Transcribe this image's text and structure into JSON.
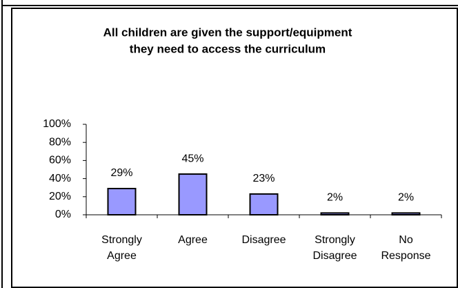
{
  "chart_data": {
    "type": "bar",
    "title": [
      "All children are given the support/equipment",
      "they need to access the curriculum"
    ],
    "categories": [
      [
        "Strongly",
        "Agree"
      ],
      [
        "Agree"
      ],
      [
        "Disagree"
      ],
      [
        "Strongly",
        "Disagree"
      ],
      [
        "No",
        "Response"
      ]
    ],
    "values": [
      29,
      45,
      23,
      2,
      2
    ],
    "value_labels": [
      "29%",
      "45%",
      "23%",
      "2%",
      "2%"
    ],
    "color": "#9999ff",
    "ylim": [
      0,
      100
    ],
    "yticks": [
      {
        "value": 0,
        "label": "0%"
      },
      {
        "value": 20,
        "label": "20%"
      },
      {
        "value": 40,
        "label": "40%"
      },
      {
        "value": 60,
        "label": "60%"
      },
      {
        "value": 80,
        "label": "80%"
      },
      {
        "value": 100,
        "label": "100%"
      }
    ],
    "grid": false
  }
}
